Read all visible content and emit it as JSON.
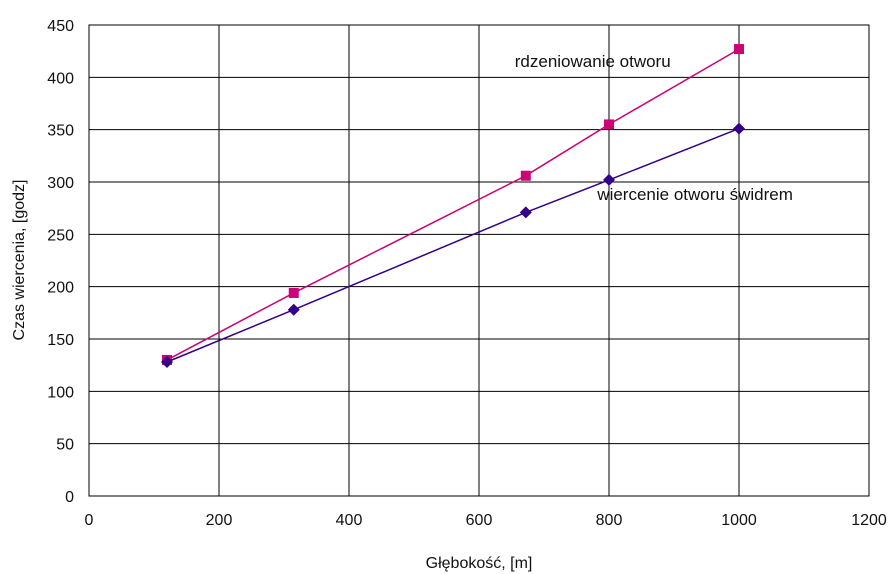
{
  "chart_data": {
    "type": "line",
    "xlabel": "Głębokość, [m]",
    "ylabel": "Czas wiercenia, [godz]",
    "xlim": [
      0,
      1200
    ],
    "ylim": [
      0,
      450
    ],
    "x_ticks": [
      0,
      200,
      400,
      600,
      800,
      1000,
      1200
    ],
    "y_ticks": [
      0,
      50,
      100,
      150,
      200,
      250,
      300,
      350,
      400,
      450
    ],
    "grid": true,
    "series": [
      {
        "name": "rdzeniowanie otworu",
        "color": "#CC0077",
        "marker": "square",
        "x": [
          120,
          315,
          672,
          800,
          1000
        ],
        "y": [
          130,
          194,
          306,
          355,
          427
        ],
        "label_at": [
          655,
          410
        ]
      },
      {
        "name": "wiercenie otworu świdrem",
        "color": "#330088",
        "marker": "diamond",
        "x": [
          120,
          315,
          672,
          800,
          1000
        ],
        "y": [
          128,
          178,
          271,
          302,
          351
        ],
        "label_at": [
          782,
          283
        ]
      }
    ]
  }
}
